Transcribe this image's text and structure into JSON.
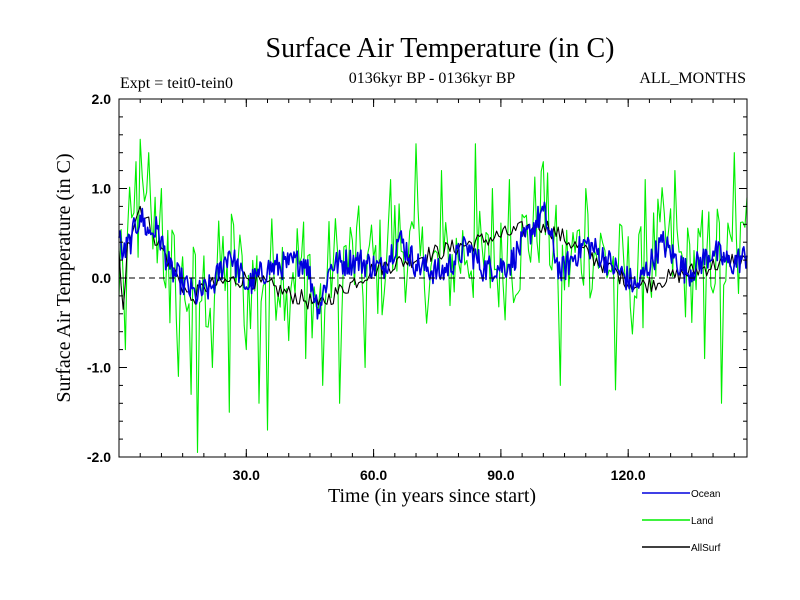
{
  "chart_data": {
    "type": "line",
    "title": "Surface Air Temperature (in C)",
    "expt_label": "Expt = teit0-tein0",
    "period_label": "0136kyr BP - 0136kyr BP",
    "months_label": "ALL_MONTHS",
    "xlabel": "Time (in years since start)",
    "ylabel": "Surface Air Temperature (in C)",
    "xlim": [
      0,
      148
    ],
    "ylim": [
      -2.0,
      2.0
    ],
    "x_ticks": [
      30,
      60,
      90,
      120
    ],
    "x_tick_labels": [
      "30.0",
      "60.0",
      "90.0",
      "120.0"
    ],
    "y_ticks": [
      -2.0,
      -1.0,
      0.0,
      1.0,
      2.0
    ],
    "y_tick_labels": [
      "-2.0",
      "-1.0",
      "0.0",
      "1.0",
      "2.0"
    ],
    "reference_line": {
      "y": 0.0,
      "style": "dashed"
    },
    "series": [
      {
        "name": "Land",
        "color": "#00ee00",
        "sample_step": 0.5,
        "anchors": [
          {
            "x": 0,
            "y": -0.2
          },
          {
            "x": 0.8,
            "y": -1.7
          },
          {
            "x": 1.5,
            "y": -0.8
          },
          {
            "x": 4,
            "y": 1.3
          },
          {
            "x": 5,
            "y": 1.55
          },
          {
            "x": 7,
            "y": 1.4
          },
          {
            "x": 10,
            "y": 1.0
          },
          {
            "x": 12,
            "y": -0.5
          },
          {
            "x": 14,
            "y": -1.1
          },
          {
            "x": 17,
            "y": -1.3
          },
          {
            "x": 18.5,
            "y": -1.95
          },
          {
            "x": 22,
            "y": -1.0
          },
          {
            "x": 26,
            "y": -1.5
          },
          {
            "x": 30,
            "y": -0.8
          },
          {
            "x": 33,
            "y": -1.4
          },
          {
            "x": 35,
            "y": -1.7
          },
          {
            "x": 40,
            "y": -0.7
          },
          {
            "x": 44,
            "y": -0.9
          },
          {
            "x": 48,
            "y": -1.2
          },
          {
            "x": 52,
            "y": -1.4
          },
          {
            "x": 58,
            "y": -1.0
          },
          {
            "x": 64,
            "y": 1.1
          },
          {
            "x": 70,
            "y": 1.5
          },
          {
            "x": 76,
            "y": 1.2
          },
          {
            "x": 84,
            "y": 1.5
          },
          {
            "x": 88,
            "y": 1.0
          },
          {
            "x": 92,
            "y": 1.1
          },
          {
            "x": 100,
            "y": 1.3
          },
          {
            "x": 104,
            "y": -1.2
          },
          {
            "x": 110,
            "y": 1.0
          },
          {
            "x": 117,
            "y": -1.25
          },
          {
            "x": 124,
            "y": 1.1
          },
          {
            "x": 131,
            "y": 1.2
          },
          {
            "x": 138,
            "y": -0.9
          },
          {
            "x": 142,
            "y": -1.4
          },
          {
            "x": 145,
            "y": 1.4
          },
          {
            "x": 148,
            "y": 0.9
          }
        ],
        "sample_spread": 0.62
      },
      {
        "name": "Ocean",
        "color": "#0000dd",
        "sample_step": 0.25,
        "anchors": [
          {
            "x": 0,
            "y": 0.45
          },
          {
            "x": 1,
            "y": 0.25
          },
          {
            "x": 3,
            "y": 0.45
          },
          {
            "x": 5,
            "y": 0.7
          },
          {
            "x": 7,
            "y": 0.5
          },
          {
            "x": 9,
            "y": 0.55
          },
          {
            "x": 12,
            "y": 0.1
          },
          {
            "x": 15,
            "y": -0.05
          },
          {
            "x": 18,
            "y": -0.2
          },
          {
            "x": 22,
            "y": -0.1
          },
          {
            "x": 26,
            "y": 0.3
          },
          {
            "x": 30,
            "y": -0.1
          },
          {
            "x": 35,
            "y": 0.1
          },
          {
            "x": 40,
            "y": 0.15
          },
          {
            "x": 44,
            "y": 0.2
          },
          {
            "x": 47,
            "y": -0.35
          },
          {
            "x": 50,
            "y": 0.15
          },
          {
            "x": 56,
            "y": 0.2
          },
          {
            "x": 62,
            "y": 0.1
          },
          {
            "x": 66,
            "y": 0.45
          },
          {
            "x": 70,
            "y": 0.15
          },
          {
            "x": 76,
            "y": 0.05
          },
          {
            "x": 82,
            "y": 0.35
          },
          {
            "x": 86,
            "y": 0.1
          },
          {
            "x": 92,
            "y": 0.15
          },
          {
            "x": 100,
            "y": 0.75
          },
          {
            "x": 104,
            "y": 0.05
          },
          {
            "x": 110,
            "y": 0.4
          },
          {
            "x": 116,
            "y": 0.15
          },
          {
            "x": 122,
            "y": -0.1
          },
          {
            "x": 128,
            "y": 0.4
          },
          {
            "x": 134,
            "y": 0.05
          },
          {
            "x": 140,
            "y": 0.3
          },
          {
            "x": 144,
            "y": 0.15
          },
          {
            "x": 148,
            "y": 0.25
          }
        ],
        "sample_spread": 0.16
      },
      {
        "name": "AllSurf",
        "color": "#000000",
        "sample_step": 0.5,
        "anchors": [
          {
            "x": 0,
            "y": 0.3
          },
          {
            "x": 1,
            "y": -0.35
          },
          {
            "x": 2,
            "y": 0.4
          },
          {
            "x": 5,
            "y": 0.8
          },
          {
            "x": 8,
            "y": 0.5
          },
          {
            "x": 14,
            "y": 0.0
          },
          {
            "x": 17,
            "y": -0.25
          },
          {
            "x": 20,
            "y": -0.1
          },
          {
            "x": 30,
            "y": 0.0
          },
          {
            "x": 47,
            "y": -0.3
          },
          {
            "x": 60,
            "y": 0.1
          },
          {
            "x": 100,
            "y": 0.6
          },
          {
            "x": 122,
            "y": -0.1
          },
          {
            "x": 148,
            "y": 0.25
          }
        ],
        "sample_spread": 0.1
      }
    ],
    "legend": {
      "placement": "bottom-right",
      "entries": [
        {
          "label": "Ocean",
          "color": "#0000dd"
        },
        {
          "label": "Land",
          "color": "#00ee00"
        },
        {
          "label": "AllSurf",
          "color": "#000000"
        }
      ]
    }
  }
}
